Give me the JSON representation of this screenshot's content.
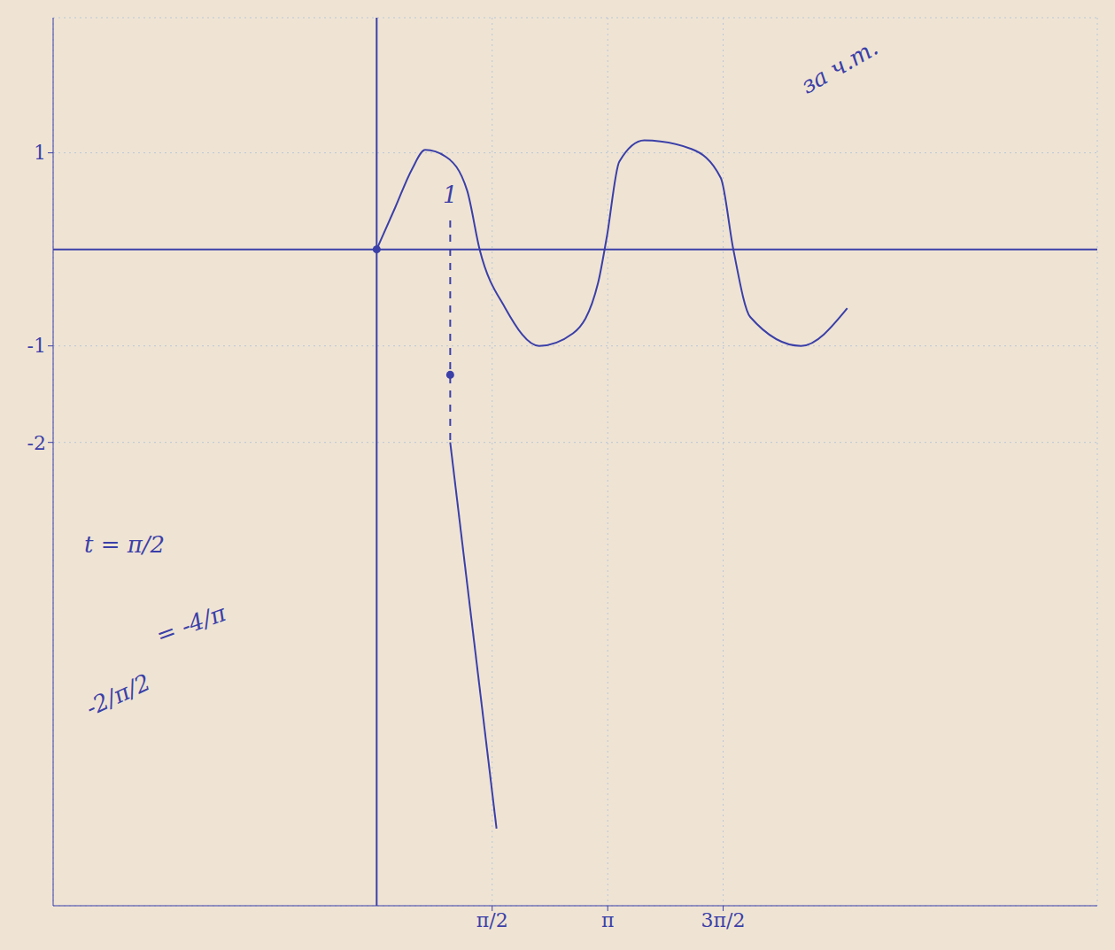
{
  "chart_data": {
    "type": "line",
    "xlim": [
      -4.4,
      9.8
    ],
    "ylim": [
      -6.8,
      2.4
    ],
    "xticks": [
      {
        "value": 1.571,
        "label": "π/2"
      },
      {
        "value": 3.142,
        "label": "π"
      },
      {
        "value": 4.712,
        "label": "3π/2"
      }
    ],
    "yticks": [
      1,
      -1,
      -2
    ],
    "grid": true,
    "color": "#3b3fa8",
    "series": [
      {
        "type": "line",
        "line_style": "solid",
        "color": "#3b3fa8",
        "x": [
          0,
          0.25,
          0.48,
          0.66,
          0.94,
          1.23,
          1.4,
          1.75,
          2.21,
          2.67,
          3.01,
          3.13,
          3.3,
          3.64,
          4.28,
          4.68,
          4.85,
          5.08,
          5.77,
          6.4
        ],
        "values": [
          0,
          0.43,
          0.83,
          1.03,
          0.96,
          0.61,
          0,
          -0.61,
          -1.0,
          -0.87,
          -0.35,
          0.13,
          0.91,
          1.13,
          1.04,
          0.74,
          0,
          -0.7,
          -1.0,
          -0.61
        ]
      },
      {
        "type": "line",
        "line_style": "solid",
        "color": "#3b3fa8",
        "x": [
          1,
          1.63
        ],
        "values": [
          -2,
          -6
        ]
      },
      {
        "type": "line",
        "line_style": "dashed",
        "color": "#3b3fa8",
        "x": [
          1,
          1
        ],
        "values": [
          0.3,
          -2
        ]
      },
      {
        "type": "scatter",
        "marker": "circle",
        "color": "#3b3fa8",
        "x": [
          0,
          1
        ],
        "values": [
          0,
          -1.3
        ]
      }
    ],
    "annotations": [
      "1",
      "t = π/2",
      "= -4/π",
      "-2/π/2",
      "за ч.т."
    ]
  }
}
